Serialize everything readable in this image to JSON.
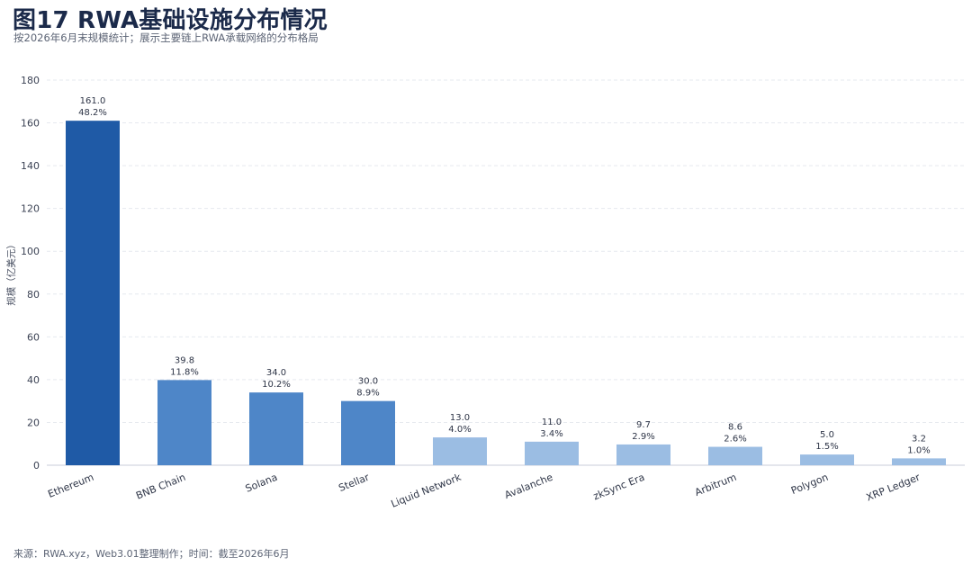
{
  "header": {
    "title": "图17 RWA基础设施分布情况",
    "subtitle": "按2026年6月末规模统计；展示主要链上RWA承载网络的分布格局"
  },
  "footer": {
    "source": "来源：RWA.xyz，Web3.01整理制作；时间：截至2026年6月"
  },
  "colors": {
    "dark": "#1f5aa6",
    "mid": "#4e86c8",
    "light": "#9bbde3",
    "grid": "#e6e9ef",
    "axis": "#c9ced8"
  },
  "chart_data": {
    "type": "bar",
    "title": "图17 RWA基础设施分布情况",
    "xlabel": "",
    "ylabel": "规模（亿美元）",
    "ylim": [
      0,
      180
    ],
    "yticks": [
      0,
      20,
      40,
      60,
      80,
      100,
      120,
      140,
      160,
      180
    ],
    "grid": true,
    "categories": [
      "Ethereum",
      "BNB Chain",
      "Solana",
      "Stellar",
      "Liquid Network",
      "Avalanche",
      "zkSync Era",
      "Arbitrum",
      "Polygon",
      "XRP Ledger"
    ],
    "values": [
      161.0,
      39.8,
      34.0,
      30.0,
      13.0,
      11.0,
      9.7,
      8.6,
      5.0,
      3.2
    ],
    "value_labels": [
      "161.0",
      "39.8",
      "34.0",
      "30.0",
      "13.0",
      "11.0",
      "9.7",
      "8.6",
      "5.0",
      "3.2"
    ],
    "shares": [
      "48.2%",
      "11.8%",
      "10.2%",
      "8.9%",
      "4.0%",
      "3.4%",
      "2.9%",
      "2.6%",
      "1.5%",
      "1.0%"
    ],
    "tiers": [
      "dark",
      "mid",
      "mid",
      "mid",
      "light",
      "light",
      "light",
      "light",
      "light",
      "light"
    ]
  }
}
